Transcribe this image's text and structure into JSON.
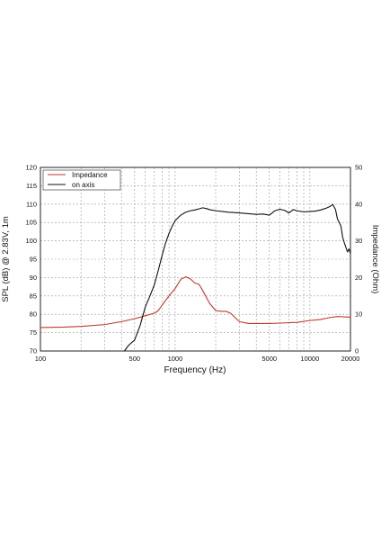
{
  "chart_data": {
    "type": "line",
    "xlabel": "Frequency (Hz)",
    "ylabel": "SPL (dB) @ 2.83V, 1m",
    "y2label": "Impedance (Ohm)",
    "x_scale": "log",
    "xlim": [
      100,
      20000
    ],
    "ylim": [
      70,
      120
    ],
    "y2lim": [
      0,
      50
    ],
    "x_ticks": [
      {
        "value": 100,
        "label": "100"
      },
      {
        "value": 500,
        "label": "500"
      },
      {
        "value": 1000,
        "label": "1000"
      },
      {
        "value": 5000,
        "label": "5000"
      },
      {
        "value": 10000,
        "label": "10000"
      },
      {
        "value": 20000,
        "label": "20000"
      }
    ],
    "y_ticks": [
      70,
      75,
      80,
      85,
      90,
      95,
      100,
      105,
      110,
      115,
      120
    ],
    "y2_ticks": [
      0,
      10,
      20,
      30,
      40,
      50
    ],
    "grid": true,
    "legend": "top-left",
    "series": [
      {
        "name": "Impedance",
        "axis": "right",
        "color": "#c0392b",
        "points": [
          [
            100,
            6.4
          ],
          [
            150,
            6.5
          ],
          [
            200,
            6.7
          ],
          [
            300,
            7.2
          ],
          [
            400,
            8
          ],
          [
            500,
            8.8
          ],
          [
            600,
            9.6
          ],
          [
            700,
            10.3
          ],
          [
            750,
            11
          ],
          [
            800,
            12.5
          ],
          [
            900,
            15
          ],
          [
            1000,
            17
          ],
          [
            1100,
            19.5
          ],
          [
            1200,
            20.2
          ],
          [
            1300,
            19.6
          ],
          [
            1400,
            18.5
          ],
          [
            1500,
            18.2
          ],
          [
            1600,
            16.5
          ],
          [
            1800,
            13
          ],
          [
            2000,
            11
          ],
          [
            2200,
            10.8
          ],
          [
            2400,
            10.8
          ],
          [
            2600,
            10.2
          ],
          [
            2800,
            9
          ],
          [
            3000,
            8
          ],
          [
            3500,
            7.5
          ],
          [
            4000,
            7.5
          ],
          [
            5000,
            7.5
          ],
          [
            6000,
            7.6
          ],
          [
            8000,
            7.8
          ],
          [
            10000,
            8.3
          ],
          [
            12000,
            8.6
          ],
          [
            14000,
            9.1
          ],
          [
            16000,
            9.4
          ],
          [
            18000,
            9.3
          ],
          [
            20000,
            9.2
          ]
        ]
      },
      {
        "name": "on axis",
        "axis": "left",
        "color": "#111111",
        "points": [
          [
            420,
            70
          ],
          [
            450,
            71.5
          ],
          [
            500,
            73
          ],
          [
            550,
            77
          ],
          [
            600,
            82
          ],
          [
            650,
            85
          ],
          [
            700,
            88
          ],
          [
            750,
            92
          ],
          [
            800,
            96
          ],
          [
            850,
            99.5
          ],
          [
            900,
            102
          ],
          [
            950,
            104
          ],
          [
            1000,
            105.5
          ],
          [
            1100,
            107
          ],
          [
            1200,
            107.8
          ],
          [
            1300,
            108.2
          ],
          [
            1400,
            108.4
          ],
          [
            1500,
            108.7
          ],
          [
            1600,
            109
          ],
          [
            1700,
            108.8
          ],
          [
            1800,
            108.5
          ],
          [
            2000,
            108.2
          ],
          [
            2500,
            107.8
          ],
          [
            3000,
            107.6
          ],
          [
            3500,
            107.4
          ],
          [
            4000,
            107.2
          ],
          [
            4500,
            107.3
          ],
          [
            5000,
            107
          ],
          [
            5500,
            108.2
          ],
          [
            6000,
            108.6
          ],
          [
            6500,
            108.3
          ],
          [
            7000,
            107.6
          ],
          [
            7500,
            108.5
          ],
          [
            8000,
            108.2
          ],
          [
            9000,
            107.9
          ],
          [
            10000,
            108
          ],
          [
            11000,
            108.1
          ],
          [
            12000,
            108.4
          ],
          [
            13000,
            108.8
          ],
          [
            14000,
            109.3
          ],
          [
            14800,
            109.9
          ],
          [
            15500,
            108.5
          ],
          [
            16000,
            106
          ],
          [
            17000,
            104
          ],
          [
            17500,
            101
          ],
          [
            18000,
            99.5
          ],
          [
            19000,
            97
          ],
          [
            19500,
            97.8
          ],
          [
            20000,
            96.5
          ]
        ]
      }
    ]
  }
}
